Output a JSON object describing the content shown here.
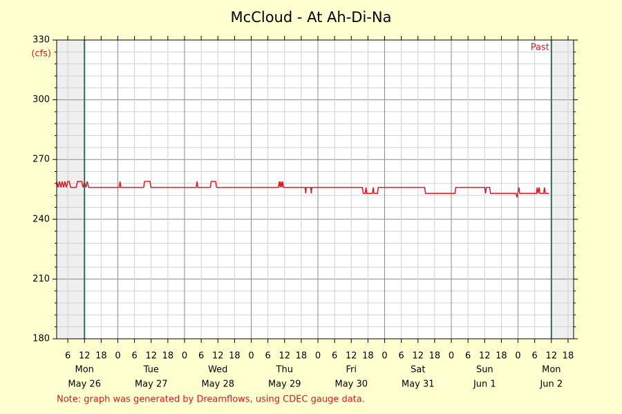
{
  "chart_data": {
    "type": "line",
    "title": "McCloud - At Ah-Di-Na",
    "y_unit_label": "(cfs)",
    "past_label": "Past",
    "note": "Note: graph was generated by Dreamflows, using CDEC gauge data.",
    "xlim": [
      2,
      188
    ],
    "ylim": [
      180,
      330
    ],
    "yticks": [
      180,
      210,
      240,
      270,
      300,
      330
    ],
    "yminorticks": [
      186,
      192,
      198,
      204,
      216,
      222,
      228,
      234,
      246,
      252,
      258,
      264,
      276,
      282,
      288,
      294,
      306,
      312,
      318,
      324
    ],
    "xticks": [
      6,
      12,
      18,
      {
        "value": 24,
        "label": "0"
      },
      {
        "value": 30,
        "label": "6"
      },
      {
        "value": 36,
        "label": "12"
      },
      {
        "value": 42,
        "label": "18"
      },
      {
        "value": 48,
        "label": "0"
      },
      {
        "value": 54,
        "label": "6"
      },
      {
        "value": 60,
        "label": "12"
      },
      {
        "value": 66,
        "label": "18"
      },
      {
        "value": 72,
        "label": "0"
      },
      {
        "value": 78,
        "label": "6"
      },
      {
        "value": 84,
        "label": "12"
      },
      {
        "value": 90,
        "label": "18"
      },
      {
        "value": 96,
        "label": "0"
      },
      {
        "value": 102,
        "label": "6"
      },
      {
        "value": 108,
        "label": "12"
      },
      {
        "value": 114,
        "label": "18"
      },
      {
        "value": 120,
        "label": "0"
      },
      {
        "value": 126,
        "label": "6"
      },
      {
        "value": 132,
        "label": "12"
      },
      {
        "value": 138,
        "label": "18"
      },
      {
        "value": 144,
        "label": "0"
      },
      {
        "value": 150,
        "label": "6"
      },
      {
        "value": 156,
        "label": "12"
      },
      {
        "value": 162,
        "label": "18"
      },
      {
        "value": 168,
        "label": "0"
      },
      {
        "value": 174,
        "label": "6"
      },
      {
        "value": 180,
        "label": "12"
      },
      {
        "value": 186,
        "label": "18"
      }
    ],
    "day_labels": [
      {
        "value": 12,
        "weekday": "Mon",
        "date": "May 26"
      },
      {
        "value": 36,
        "weekday": "Tue",
        "date": "May 27"
      },
      {
        "value": 60,
        "weekday": "Wed",
        "date": "May 28"
      },
      {
        "value": 84,
        "weekday": "Thu",
        "date": "May 29"
      },
      {
        "value": 108,
        "weekday": "Fri",
        "date": "May 30"
      },
      {
        "value": 132,
        "weekday": "Sat",
        "date": "May 31"
      },
      {
        "value": 156,
        "weekday": "Sun",
        "date": "Jun 1"
      },
      {
        "value": 180,
        "weekday": "Mon",
        "date": "Jun 2"
      }
    ],
    "past_range": [
      12,
      180
    ],
    "grid": true,
    "series": [
      {
        "color": "#e8141c",
        "x": [
          2,
          2.5,
          3,
          3.5,
          4,
          4.5,
          5,
          5.5,
          6,
          6.5,
          7,
          9,
          9.5,
          11,
          11.5,
          12,
          12.5,
          13,
          13.5,
          24.5,
          24.8,
          25.1,
          33.3,
          33.6,
          35.6,
          35.9,
          52.2,
          52.5,
          52.8,
          57.3,
          57.6,
          59.2,
          59.5,
          81.8,
          82.1,
          82.4,
          82.7,
          83,
          83.3,
          83.6,
          91.4,
          91.6,
          91.8,
          93.4,
          93.6,
          93.8,
          112,
          112.3,
          113,
          113.3,
          113.6,
          115.6,
          115.9,
          116.2,
          117.4,
          117.7,
          134.4,
          134.7,
          145.3,
          145.6,
          156,
          156.3,
          156.6,
          157.8,
          158.1,
          167.3,
          167.6,
          167.9,
          168.3,
          168.6,
          174.6,
          174.9,
          175.2,
          175.6,
          175.9,
          177.2,
          177.5,
          177.8,
          179.2
        ],
        "values": [
          259,
          256,
          259,
          256,
          259,
          256,
          259,
          256,
          259,
          259,
          256,
          256,
          259,
          259,
          256,
          259,
          256,
          259,
          256,
          256,
          259,
          256,
          256,
          259,
          259,
          256,
          256,
          259,
          256,
          256,
          259,
          259,
          256,
          256,
          259,
          256,
          259,
          256,
          259,
          256,
          256,
          253,
          256,
          256,
          253,
          256,
          256,
          253,
          253,
          256,
          253,
          253,
          256,
          253,
          253,
          256,
          256,
          253,
          253,
          256,
          256,
          253,
          256,
          256,
          253,
          253,
          251,
          253,
          256,
          253,
          253,
          256,
          253,
          256,
          253,
          253,
          256,
          253,
          253
        ]
      }
    ]
  }
}
